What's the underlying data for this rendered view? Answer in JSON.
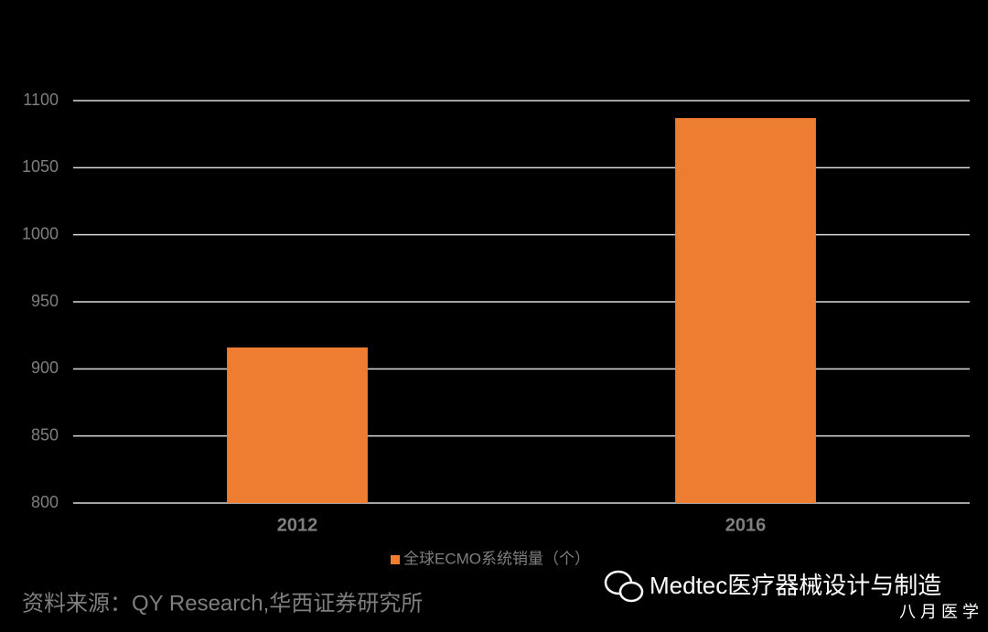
{
  "chart_data": {
    "type": "bar",
    "categories": [
      "2012",
      "2016"
    ],
    "series": [
      {
        "name": "全球ECMO系统销量（个）",
        "color": "#ed7d31",
        "values": [
          916,
          1087
        ]
      }
    ],
    "ylim": [
      800,
      1100
    ],
    "yticks": [
      800,
      850,
      900,
      950,
      1000,
      1050,
      1100
    ],
    "grid": true,
    "legend": "bottom",
    "source": "资料来源：QY Research,华西证券研究所",
    "watermark": "Medtec医疗器械设计与制造",
    "watermark_sub": "八 月 医 学"
  }
}
